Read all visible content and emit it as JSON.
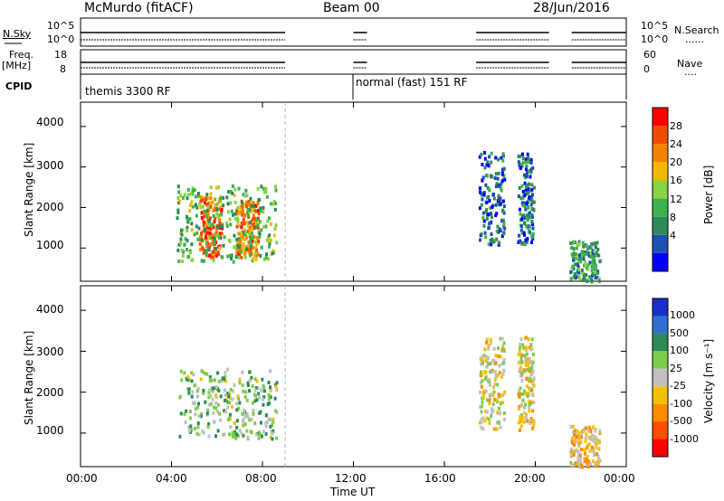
{
  "header": {
    "station": "McMurdo (fitACF)",
    "beam": "Beam 00",
    "date": "28/Jun/2016"
  },
  "side_labels": {
    "nsky": "N.Sky",
    "freq": "Freq.",
    "freq_unit": "[MHz]",
    "cpid": "CPID",
    "nsearch": "N.Search",
    "nave": "Nave",
    "dots": "......",
    "dots_short": "...."
  },
  "top_panels": {
    "noise_ticks_left": [
      "10^5",
      "10^0"
    ],
    "noise_ticks_right": [
      "10^5",
      "10^0"
    ],
    "freq_ticks_left": [
      "18",
      "8"
    ],
    "nave_ticks_right": [
      "60",
      "0"
    ]
  },
  "cpid": {
    "mode1": "themis 3300 RF",
    "mode2": "normal (fast) 151 RF"
  },
  "x_axis": {
    "label": "Time UT",
    "ticks": [
      "00:00",
      "04:00",
      "08:00",
      "12:00",
      "16:00",
      "20:00",
      "00:00"
    ]
  },
  "power_panel": {
    "ylabel": "Slant Range [km]",
    "yticks": [
      "4000",
      "3000",
      "2000",
      "1000"
    ],
    "colorbar_label": "Power [dB]",
    "colorbar_ticks": [
      "28",
      "24",
      "20",
      "16",
      "12",
      "8",
      "4"
    ]
  },
  "velocity_panel": {
    "ylabel": "Slant Range [km]",
    "yticks": [
      "4000",
      "3000",
      "2000",
      "1000"
    ],
    "colorbar_label": "Velocity [m s⁻¹]",
    "colorbar_ticks": [
      "1000",
      "500",
      "100",
      "25",
      "-25",
      "-100",
      "-500",
      "-1000"
    ]
  },
  "colors": {
    "power_scale": [
      "#0000ff",
      "#1e4fb4",
      "#2e8b57",
      "#3cb44b",
      "#88d444",
      "#f5b700",
      "#f58200",
      "#ee4c00",
      "#ff0000"
    ],
    "velocity_scale": [
      "#1a2ec8",
      "#2f6fd0",
      "#2e8b57",
      "#7ccd4a",
      "#c0c0c0",
      "#f5c000",
      "#ff8c00",
      "#ff4c00",
      "#ff0000"
    ]
  },
  "chart_data": [
    {
      "type": "heatmap",
      "title": "Power",
      "xlabel": "Time UT",
      "ylabel": "Slant Range [km]",
      "xlim_hours": [
        0,
        24
      ],
      "ylim": [
        180,
        4600
      ],
      "colorbar": {
        "label": "Power [dB]",
        "range": [
          0,
          30
        ]
      },
      "regions": [
        {
          "t": [
            5.2,
            6.2
          ],
          "r": [
            800,
            2300
          ],
          "value": 24
        },
        {
          "t": [
            6.8,
            7.8
          ],
          "r": [
            800,
            2200
          ],
          "value": 22
        },
        {
          "t": [
            4.2,
            8.6
          ],
          "r": [
            700,
            2600
          ],
          "value": 12
        },
        {
          "t": [
            17.5,
            18.6
          ],
          "r": [
            1100,
            3400
          ],
          "value": 6
        },
        {
          "t": [
            19.2,
            19.9
          ],
          "r": [
            1100,
            3400
          ],
          "value": 7
        },
        {
          "t": [
            21.5,
            22.8
          ],
          "r": [
            200,
            1200
          ],
          "value": 10
        }
      ]
    },
    {
      "type": "heatmap",
      "title": "Velocity",
      "xlabel": "Time UT",
      "ylabel": "Slant Range [km]",
      "xlim_hours": [
        0,
        24
      ],
      "ylim": [
        180,
        4600
      ],
      "colorbar": {
        "label": "Velocity [m s⁻¹]",
        "range": [
          -1000,
          1000
        ]
      },
      "regions": [
        {
          "t": [
            4.3,
            8.6
          ],
          "r": [
            900,
            2600
          ],
          "value": 200
        },
        {
          "t": [
            17.5,
            18.6
          ],
          "r": [
            1100,
            3400
          ],
          "value": -80
        },
        {
          "t": [
            19.2,
            19.9
          ],
          "r": [
            1100,
            3400
          ],
          "value": -80
        },
        {
          "t": [
            21.5,
            22.8
          ],
          "r": [
            200,
            1200
          ],
          "value": -200
        }
      ]
    }
  ]
}
